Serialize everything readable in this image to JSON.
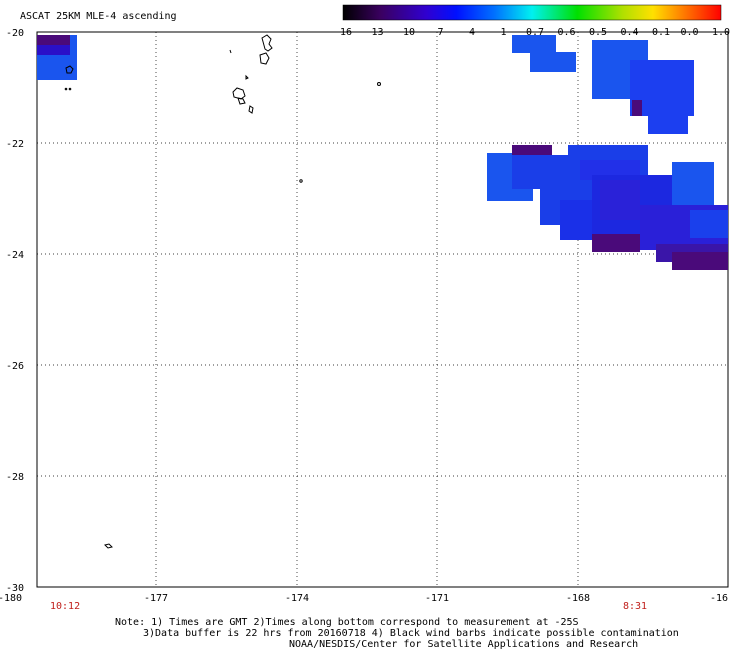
{
  "title": "ASCAT 25KM MLE-4 ascending",
  "colorbar": {
    "labels": [
      "-16",
      "-13",
      "-10",
      "-7",
      "-4",
      "-1",
      "-0.7",
      "-0.6",
      "-0.5",
      "-0.4",
      "-0.1",
      "0.0",
      "1.0"
    ]
  },
  "map": {
    "lat_labels": [
      "-20",
      "-22",
      "-24",
      "-26",
      "-28",
      "-30"
    ],
    "lon_labels": [
      "-180",
      "-177",
      "-174",
      "-171",
      "-168",
      "-16"
    ],
    "lat_range": [
      -30,
      -20
    ],
    "lon_range": [
      -180,
      -165
    ]
  },
  "times": {
    "left": "10:12",
    "right": "8:31"
  },
  "notes": {
    "line1": "Note: 1) Times are GMT 2)Times along bottom correspond to measurement at -25S",
    "line2": "3)Data buffer is 22 hrs from 20160718 4) Black wind barbs indicate possible contamination",
    "line3": "NOAA/NESDIS/Center for Satellite Applications and Research"
  },
  "colors": {
    "blue": "#1a55ee",
    "blue_mid": "#1c3ff0",
    "blue_dark": "#1a22e8",
    "indigo": "#2a10c8",
    "purple": "#4a0a7a",
    "sky": "#1e6ef2"
  }
}
